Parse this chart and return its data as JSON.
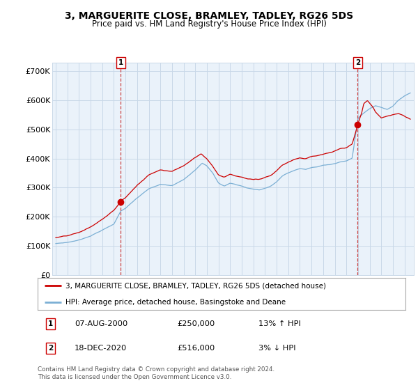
{
  "title": "3, MARGUERITE CLOSE, BRAMLEY, TADLEY, RG26 5DS",
  "subtitle": "Price paid vs. HM Land Registry's House Price Index (HPI)",
  "ylabel_ticks": [
    "£0",
    "£100K",
    "£200K",
    "£300K",
    "£400K",
    "£500K",
    "£600K",
    "£700K"
  ],
  "ytick_vals": [
    0,
    100000,
    200000,
    300000,
    400000,
    500000,
    600000,
    700000
  ],
  "ylim": [
    0,
    730000
  ],
  "xlim_start": 1994.7,
  "xlim_end": 2025.8,
  "sale1_x": 2000.6,
  "sale1_y": 250000,
  "sale2_x": 2020.97,
  "sale2_y": 516000,
  "legend_line1": "3, MARGUERITE CLOSE, BRAMLEY, TADLEY, RG26 5DS (detached house)",
  "legend_line2": "HPI: Average price, detached house, Basingstoke and Deane",
  "footer": "Contains HM Land Registry data © Crown copyright and database right 2024.\nThis data is licensed under the Open Government Licence v3.0.",
  "line_color_red": "#cc0000",
  "line_color_blue": "#7bafd4",
  "vline_color": "#cc4444",
  "grid_color": "#c8d8e8",
  "bg_chart": "#eaf2fa",
  "background_color": "#ffffff"
}
